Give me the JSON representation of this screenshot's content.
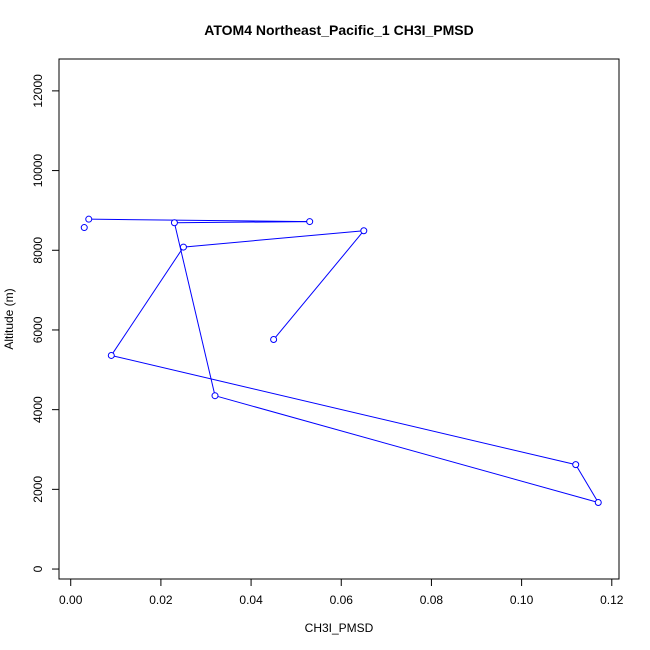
{
  "chart_data": {
    "type": "line",
    "title": "ATOM4 Northeast_Pacific_1 CH3I_PMSD",
    "xlabel": "CH3I_PMSD",
    "ylabel": "Altitude (m)",
    "xlim": [
      -0.0026,
      0.1216
    ],
    "ylim": [
      -250,
      12800
    ],
    "x_ticks": [
      0.0,
      0.02,
      0.04,
      0.06,
      0.08,
      0.1,
      0.12
    ],
    "x_tick_labels": [
      "0.00",
      "0.02",
      "0.04",
      "0.06",
      "0.08",
      "0.10",
      "0.12"
    ],
    "y_ticks": [
      0,
      2000,
      4000,
      6000,
      8000,
      10000,
      12000
    ],
    "y_tick_labels": [
      "0",
      "2000",
      "4000",
      "6000",
      "8000",
      "10000",
      "12000"
    ],
    "grid": false,
    "series_color": "#0000ff",
    "points": [
      {
        "x": 0.003,
        "y": 8570
      },
      {
        "x": 0.004,
        "y": 8780
      },
      {
        "x": 0.053,
        "y": 8720
      },
      {
        "x": 0.023,
        "y": 8690
      },
      {
        "x": 0.032,
        "y": 4350
      },
      {
        "x": 0.117,
        "y": 1670
      },
      {
        "x": 0.112,
        "y": 2620
      },
      {
        "x": 0.009,
        "y": 5360
      },
      {
        "x": 0.025,
        "y": 8080
      },
      {
        "x": 0.065,
        "y": 8490
      },
      {
        "x": 0.045,
        "y": 5760
      }
    ],
    "line_segments": [
      [
        1,
        2
      ],
      [
        2,
        3
      ],
      [
        3,
        4
      ],
      [
        4,
        5
      ],
      [
        5,
        6
      ],
      [
        6,
        7
      ],
      [
        7,
        8
      ],
      [
        8,
        9
      ],
      [
        9,
        10
      ]
    ]
  }
}
